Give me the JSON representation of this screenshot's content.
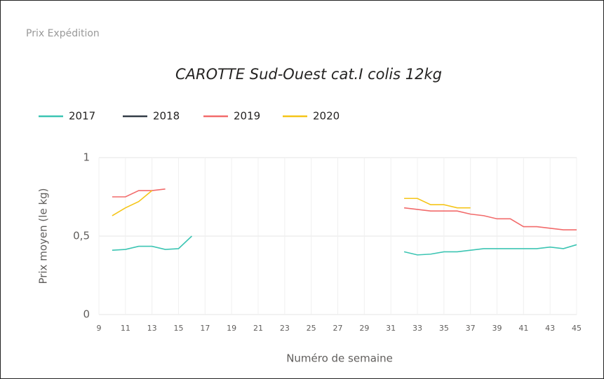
{
  "header": {
    "title": "Prix Expédition"
  },
  "chart_data": {
    "type": "line",
    "title": "CAROTTE Sud-Ouest cat.I colis 12kg",
    "x_label": "Numéro de semaine",
    "y_label": "Prix moyen  (le kg)",
    "x": [
      10,
      11,
      12,
      13,
      14,
      15,
      16,
      17,
      18,
      19,
      20,
      21,
      22,
      23,
      24,
      25,
      26,
      27,
      28,
      29,
      30,
      31,
      32,
      33,
      34,
      35,
      36,
      37,
      38,
      39,
      40,
      41,
      42,
      43,
      44,
      45
    ],
    "series": [
      {
        "name": "2017",
        "color": "#3cc5b3",
        "values": [
          0.41,
          0.415,
          0.435,
          0.435,
          0.415,
          0.42,
          0.5,
          null,
          null,
          null,
          null,
          null,
          null,
          null,
          null,
          null,
          null,
          null,
          null,
          null,
          null,
          null,
          0.4,
          0.38,
          0.385,
          0.4,
          0.4,
          0.41,
          0.42,
          0.42,
          0.42,
          0.42,
          0.42,
          0.43,
          0.42,
          0.445
        ]
      },
      {
        "name": "2018",
        "color": "#333d47",
        "values": [
          null,
          null,
          null,
          null,
          null,
          null,
          null,
          null,
          null,
          null,
          null,
          null,
          null,
          null,
          null,
          null,
          null,
          null,
          null,
          null,
          null,
          null,
          null,
          null,
          null,
          null,
          null,
          null,
          null,
          null,
          null,
          null,
          null,
          null,
          null,
          null
        ]
      },
      {
        "name": "2019",
        "color": "#f26b6b",
        "values": [
          0.75,
          0.75,
          0.79,
          0.79,
          0.8,
          null,
          null,
          null,
          null,
          null,
          null,
          null,
          null,
          null,
          null,
          null,
          null,
          null,
          null,
          null,
          null,
          null,
          0.68,
          0.67,
          0.66,
          0.66,
          0.66,
          0.64,
          0.63,
          0.61,
          0.61,
          0.56,
          0.56,
          0.55,
          0.54,
          0.54
        ]
      },
      {
        "name": "2020",
        "color": "#f5c518",
        "values": [
          0.63,
          0.68,
          0.72,
          0.79,
          null,
          null,
          null,
          null,
          null,
          null,
          null,
          null,
          null,
          null,
          null,
          null,
          null,
          null,
          null,
          null,
          null,
          null,
          0.74,
          0.74,
          0.7,
          0.7,
          0.68,
          0.68,
          null,
          null,
          null,
          null,
          null,
          null,
          null,
          null
        ]
      }
    ],
    "xlim": [
      9,
      45
    ],
    "xticks": [
      9,
      11,
      13,
      15,
      17,
      19,
      21,
      23,
      25,
      27,
      29,
      31,
      33,
      35,
      37,
      39,
      41,
      43,
      45
    ],
    "ylim": [
      0,
      1
    ],
    "yticks": [
      0,
      {
        "value": 0.5,
        "label": "0,5"
      },
      1
    ],
    "grid": true
  }
}
